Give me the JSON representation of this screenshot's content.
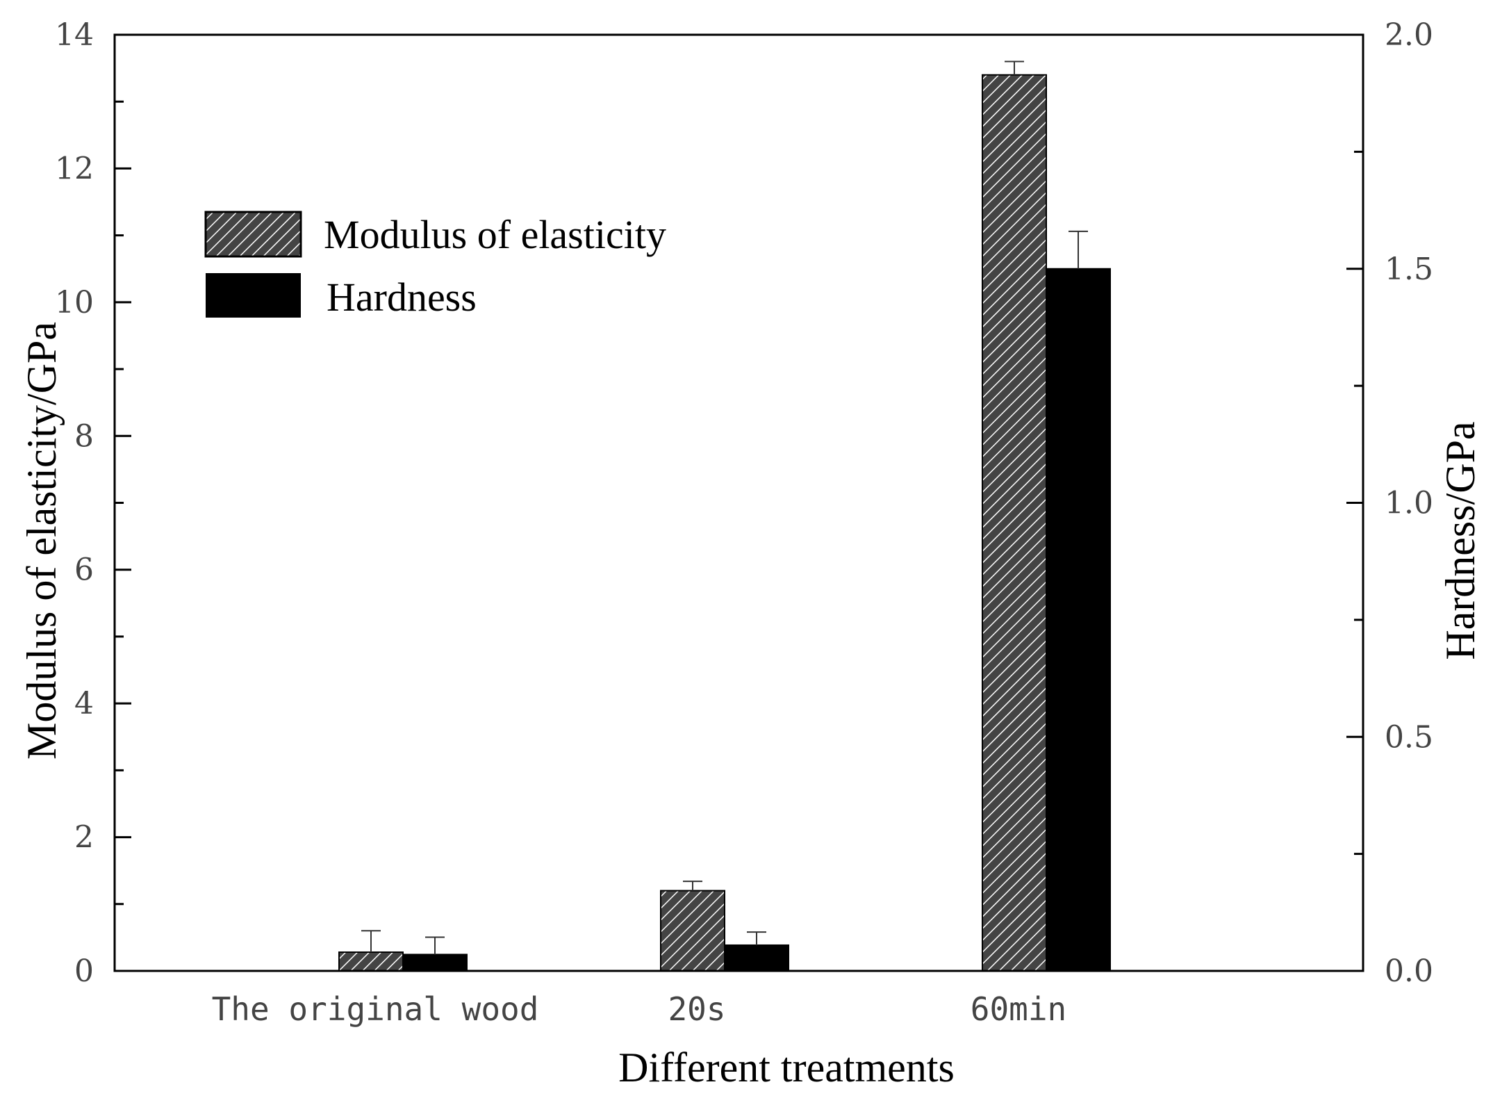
{
  "chart_data": {
    "type": "bar",
    "categories": [
      "The original wood",
      "20s",
      "60min"
    ],
    "series": [
      {
        "name": "Modulus of elasticity",
        "axis": "left",
        "pattern": "hatched",
        "values": [
          0.28,
          1.2,
          13.4
        ],
        "errors": [
          0.32,
          0.14,
          0.2
        ]
      },
      {
        "name": "Hardness",
        "axis": "right",
        "pattern": "solid",
        "values": [
          0.035,
          0.055,
          1.5
        ],
        "errors": [
          0.037,
          0.028,
          0.08
        ]
      }
    ],
    "xlabel": "Different treatments",
    "ylabel": "Modulus of elasticity/GPa",
    "y2label": "Hardness/GPa",
    "ylim": [
      0,
      14
    ],
    "y2lim": [
      0,
      2.0
    ],
    "yticks": [
      "0",
      "2",
      "4",
      "6",
      "8",
      "10",
      "12",
      "14"
    ],
    "y2ticks": [
      "0.0",
      "0.5",
      "1.0",
      "1.5",
      "2.0"
    ],
    "grid": false,
    "legend_position": "top-left",
    "colors": {
      "bar": "#000000",
      "hatch_bg": "#444444",
      "hatch_line": "#ffffff",
      "axis": "#000000"
    }
  }
}
